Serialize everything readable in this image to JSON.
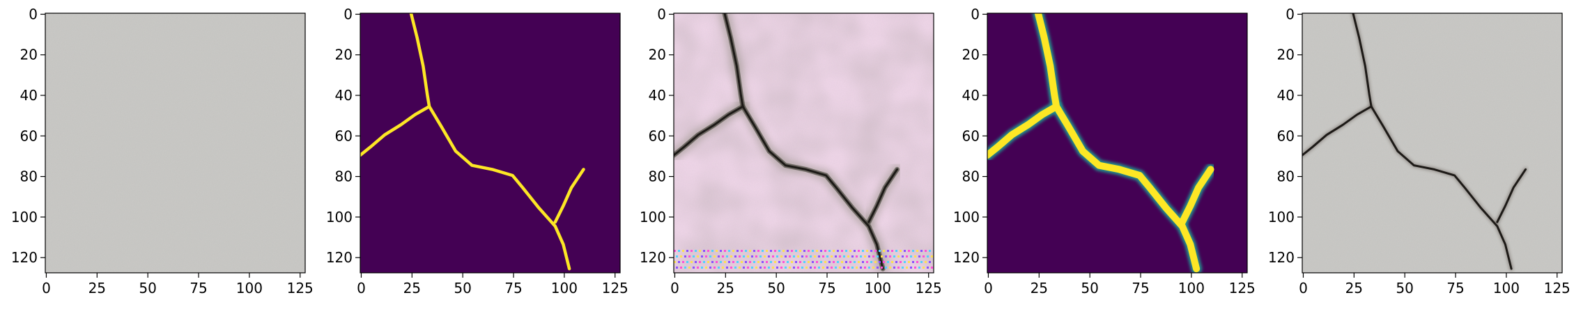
{
  "panels": [
    {
      "id": "input",
      "kind": "concrete_photo",
      "crack": false
    },
    {
      "id": "ground_truth_mask",
      "kind": "mask",
      "background": "#440154",
      "crack_color": "#fde725"
    },
    {
      "id": "generated_image",
      "kind": "synthetic_crack",
      "crack": true
    },
    {
      "id": "predicted_mask",
      "kind": "mask_soft",
      "background": "#440154",
      "crack_color": "#fde725",
      "edge_color": "#21918c"
    },
    {
      "id": "overlay",
      "kind": "concrete_photo",
      "crack": true
    }
  ],
  "axes": {
    "x_ticks": [
      "0",
      "25",
      "50",
      "75",
      "100",
      "125"
    ],
    "y_ticks": [
      "0",
      "20",
      "40",
      "60",
      "80",
      "100",
      "120"
    ]
  },
  "crack_path": [
    [
      25,
      0
    ],
    [
      28,
      12
    ],
    [
      31,
      26
    ],
    [
      33,
      40
    ],
    [
      34,
      46
    ],
    [
      40,
      56
    ],
    [
      47,
      68
    ],
    [
      55,
      75
    ],
    [
      65,
      77
    ],
    [
      75,
      80
    ],
    [
      80,
      86
    ],
    [
      88,
      96
    ],
    [
      96,
      105
    ],
    [
      100,
      114
    ],
    [
      103,
      126
    ]
  ],
  "crack_branch_left": [
    [
      34,
      46
    ],
    [
      27,
      50
    ],
    [
      20,
      55
    ],
    [
      12,
      60
    ],
    [
      5,
      66
    ],
    [
      0,
      70
    ]
  ],
  "crack_branch_right": [
    [
      96,
      103
    ],
    [
      100,
      95
    ],
    [
      104,
      86
    ],
    [
      110,
      77
    ]
  ],
  "colors": {
    "concrete_base": "#c5c4c1",
    "concrete_dark": "#9e9c98",
    "concrete_light": "#dcdad6",
    "pink_base": "#f1d6ea",
    "crack_dark": "#1d1a17"
  }
}
